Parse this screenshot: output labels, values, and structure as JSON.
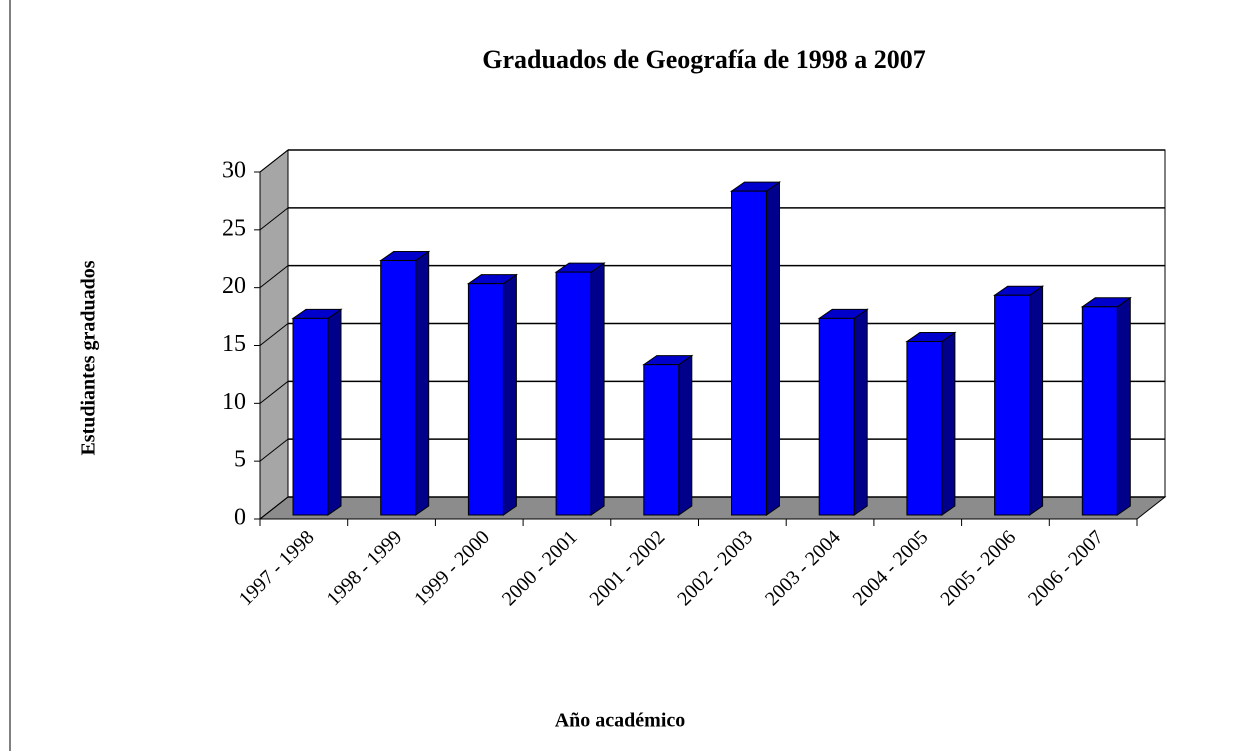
{
  "chart_data": {
    "type": "bar",
    "title": "Graduados de Geografía de 1998 a 2007",
    "x_label": "Año académico",
    "y_label": "Estudiantes graduados",
    "categories": [
      "1997 - 1998",
      "1998 - 1999",
      "1999 - 2000",
      "2000 - 2001",
      "2001 - 2002",
      "2002 - 2003",
      "2003 - 2004",
      "2004 - 2005",
      "2005 - 2006",
      "2006 - 2007"
    ],
    "values": [
      17,
      22,
      20,
      21,
      13,
      28,
      17,
      15,
      19,
      18
    ],
    "color": "#0000ff",
    "ylim": [
      0,
      30
    ],
    "yticks": [
      0,
      5,
      10,
      15,
      20,
      25,
      30
    ],
    "grid": true
  }
}
